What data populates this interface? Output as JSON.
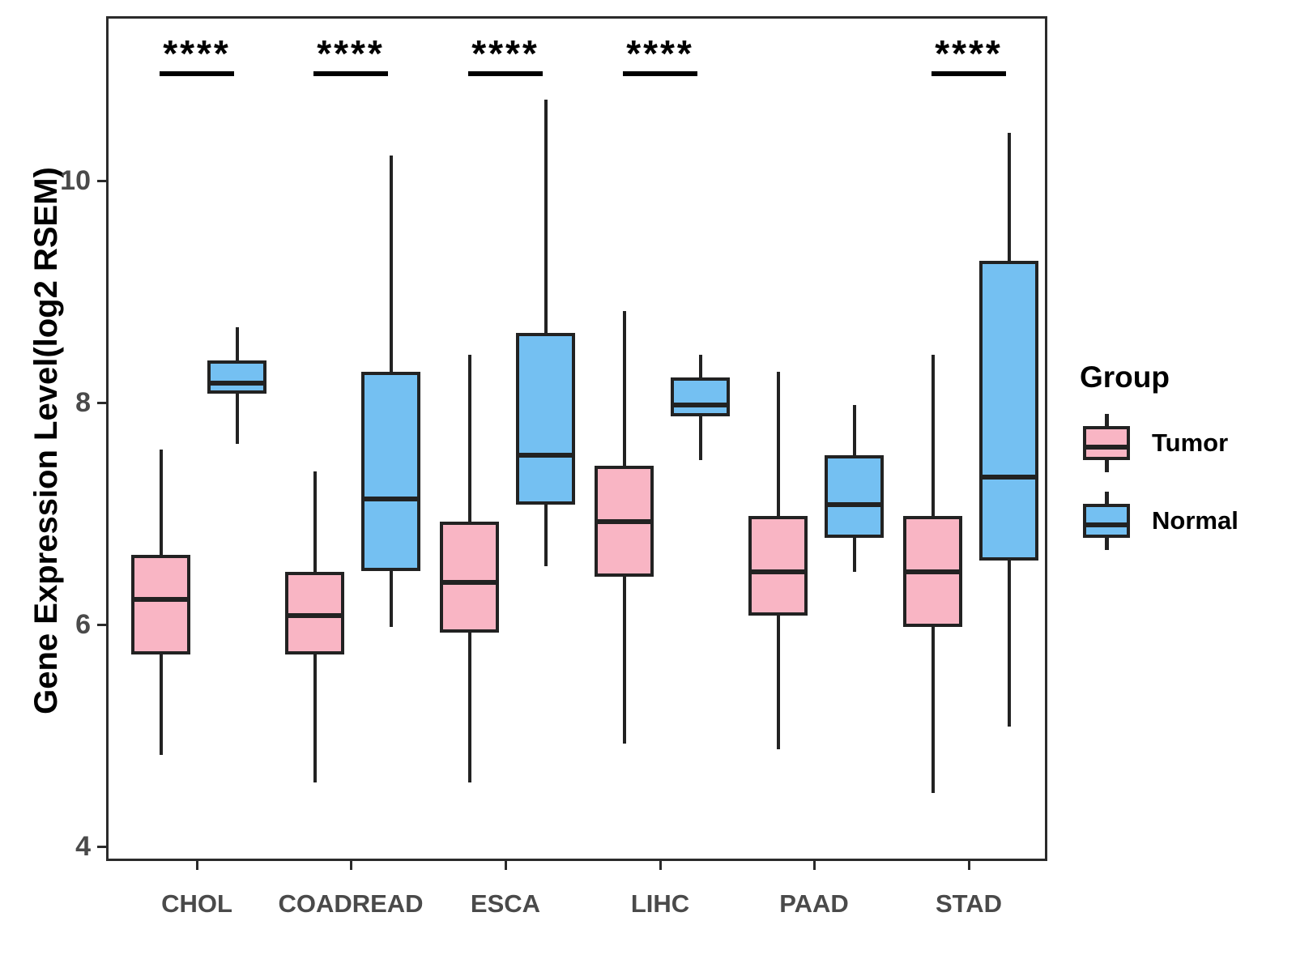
{
  "legend_title": "Group",
  "chart_data": {
    "type": "boxplot",
    "title": "",
    "xlabel": "",
    "ylabel": "Gene Expression Level(log2 RSEM)",
    "ylim": [
      3.7,
      11.4
    ],
    "y_ticks": [
      4,
      6,
      8,
      10
    ],
    "grid": false,
    "legend_position": "right",
    "categories": [
      "CHOL",
      "COADREAD",
      "ESCA",
      "LIHC",
      "PAAD",
      "STAD"
    ],
    "series": [
      {
        "name": "Tumor",
        "fill": "#F9B5C4",
        "stats": [
          {
            "min": 4.85,
            "q1": 5.75,
            "median": 6.25,
            "q3": 6.65,
            "max": 7.6
          },
          {
            "min": 4.6,
            "q1": 5.75,
            "median": 6.1,
            "q3": 6.5,
            "max": 7.4
          },
          {
            "min": 4.6,
            "q1": 5.95,
            "median": 6.4,
            "q3": 6.95,
            "max": 8.45
          },
          {
            "min": 4.95,
            "q1": 6.45,
            "median": 6.95,
            "q3": 7.45,
            "max": 8.85
          },
          {
            "min": 4.9,
            "q1": 6.1,
            "median": 6.5,
            "q3": 7.0,
            "max": 8.3
          },
          {
            "min": 4.5,
            "q1": 6.0,
            "median": 6.5,
            "q3": 7.0,
            "max": 8.45
          }
        ]
      },
      {
        "name": "Normal",
        "fill": "#74C0F2",
        "stats": [
          {
            "min": 7.65,
            "q1": 8.1,
            "median": 8.2,
            "q3": 8.4,
            "max": 8.7
          },
          {
            "min": 6.0,
            "q1": 6.5,
            "median": 7.15,
            "q3": 8.3,
            "max": 10.25
          },
          {
            "min": 6.55,
            "q1": 7.1,
            "median": 7.55,
            "q3": 8.65,
            "max": 10.75
          },
          {
            "min": 7.5,
            "q1": 7.9,
            "median": 8.0,
            "q3": 8.25,
            "max": 8.45
          },
          {
            "min": 6.5,
            "q1": 6.8,
            "median": 7.1,
            "q3": 7.55,
            "max": 8.0
          },
          {
            "min": 5.1,
            "q1": 6.6,
            "median": 7.35,
            "q3": 9.3,
            "max": 10.45
          }
        ]
      }
    ],
    "significance_markers": [
      {
        "category": "CHOL",
        "label": "****"
      },
      {
        "category": "COADREAD",
        "label": "****"
      },
      {
        "category": "ESCA",
        "label": "****"
      },
      {
        "category": "LIHC",
        "label": "****"
      },
      {
        "category": "STAD",
        "label": "****"
      }
    ]
  }
}
